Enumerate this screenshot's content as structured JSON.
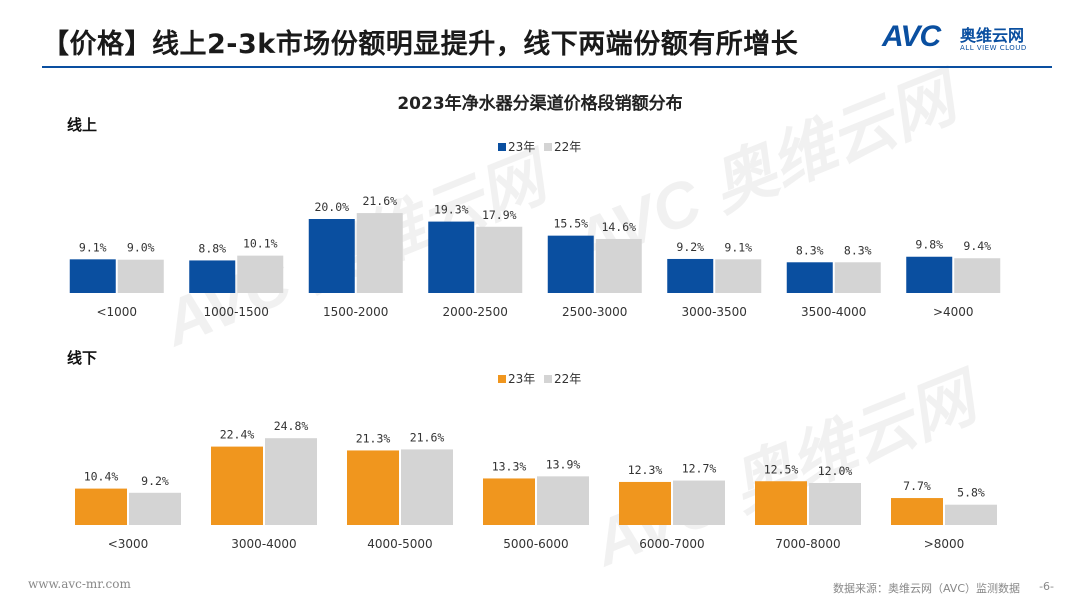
{
  "header": {
    "title": "【价格】线上2-3k市场份额明显提升，线下两端份额有所增长",
    "logo_text": "AVC",
    "logo_cn": "奥维云网",
    "logo_en": "ALL VIEW CLOUD"
  },
  "colors": {
    "online_23": "#0a4fa0",
    "offline_23": "#f0961e",
    "prev_22": "#d4d4d4",
    "rule": "#0a4fa0"
  },
  "chart_title": "2023年净水器分渠道价格段销额分布",
  "watermark": "AVC 奥维云网",
  "chart_data": [
    {
      "type": "bar",
      "section_label": "线上",
      "categories": [
        "<1000",
        "1000-1500",
        "1500-2000",
        "2000-2500",
        "2500-3000",
        "3000-3500",
        "3500-4000",
        ">4000"
      ],
      "series": [
        {
          "name": "23年",
          "values": [
            9.1,
            8.8,
            20.0,
            19.3,
            15.5,
            9.2,
            8.3,
            9.8
          ]
        },
        {
          "name": "22年",
          "values": [
            9.0,
            10.1,
            21.6,
            17.9,
            14.6,
            9.1,
            8.3,
            9.4
          ]
        }
      ],
      "unit": "%",
      "ylim": [
        0,
        30
      ],
      "legend": "top-center",
      "grid": false
    },
    {
      "type": "bar",
      "section_label": "线下",
      "categories": [
        "<3000",
        "3000-4000",
        "4000-5000",
        "5000-6000",
        "6000-7000",
        "7000-8000",
        ">8000"
      ],
      "series": [
        {
          "name": "23年",
          "values": [
            10.4,
            22.4,
            21.3,
            13.3,
            12.3,
            12.5,
            7.7
          ]
        },
        {
          "name": "22年",
          "values": [
            9.2,
            24.8,
            21.6,
            13.9,
            12.7,
            12.0,
            5.8
          ]
        }
      ],
      "unit": "%",
      "ylim": [
        0,
        30
      ],
      "legend": "top-center",
      "grid": false
    }
  ],
  "footer": {
    "website": "www.avc-mr.com",
    "source": "数据来源：奥维云网（AVC）监测数据",
    "page": "-6-"
  }
}
